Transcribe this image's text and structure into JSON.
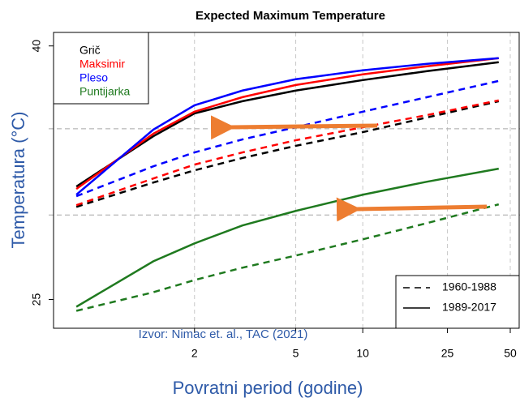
{
  "chart_data": {
    "type": "line",
    "title": "Expected Maximum Temperature",
    "x_label": "Povratni period (godine)",
    "y_label": "Temperatura (°C)",
    "source": "Izvor: Nimac et. al., TAC (2021)",
    "xscale": "gumbel",
    "xlim": [
      1.036,
      55.2
    ],
    "xticks": [
      2,
      5,
      10,
      25,
      50
    ],
    "ylim": [
      23.3,
      40.8
    ],
    "yticks": [
      25,
      40
    ],
    "grid": true,
    "legend_position": "top-left",
    "period_legend_position": "bottom-right",
    "reference_lines": [
      35.1,
      30
    ],
    "x": [
      1.08,
      1.5,
      2,
      3,
      5,
      10,
      20,
      44
    ],
    "periods": [
      {
        "label": "1960-1988",
        "dash": "dashed"
      },
      {
        "label": "1989-2017",
        "dash": "solid"
      }
    ],
    "series": [
      {
        "name": "Grič",
        "color": "#000000",
        "values_by_period": [
          [
            30.48,
            31.92,
            32.64,
            33.37,
            34.09,
            34.9,
            35.77,
            36.73
          ],
          [
            31.68,
            34.66,
            36.01,
            36.73,
            37.36,
            37.98,
            38.51,
            39.04
          ]
        ]
      },
      {
        "name": "Maksimir",
        "color": "#ff0000",
        "values_by_period": [
          [
            30.58,
            32.16,
            32.98,
            33.7,
            34.42,
            35.19,
            35.91,
            36.78
          ],
          [
            31.54,
            34.81,
            36.11,
            36.97,
            37.69,
            38.32,
            38.8,
            39.28
          ]
        ]
      },
      {
        "name": "Pleso",
        "color": "#0000ff",
        "values_by_period": [
          [
            31.11,
            32.88,
            33.7,
            34.47,
            35.19,
            36.11,
            36.97,
            37.93
          ],
          [
            31.2,
            35.05,
            36.49,
            37.36,
            38.03,
            38.56,
            38.94,
            39.28
          ]
        ]
      },
      {
        "name": "Puntijarka",
        "color": "#1f7a1f",
        "values_by_period": [
          [
            24.33,
            25.43,
            26.15,
            26.88,
            27.6,
            28.56,
            29.52,
            30.63
          ],
          [
            24.57,
            27.26,
            28.32,
            29.38,
            30.24,
            31.2,
            31.97,
            32.74
          ]
        ]
      }
    ]
  }
}
